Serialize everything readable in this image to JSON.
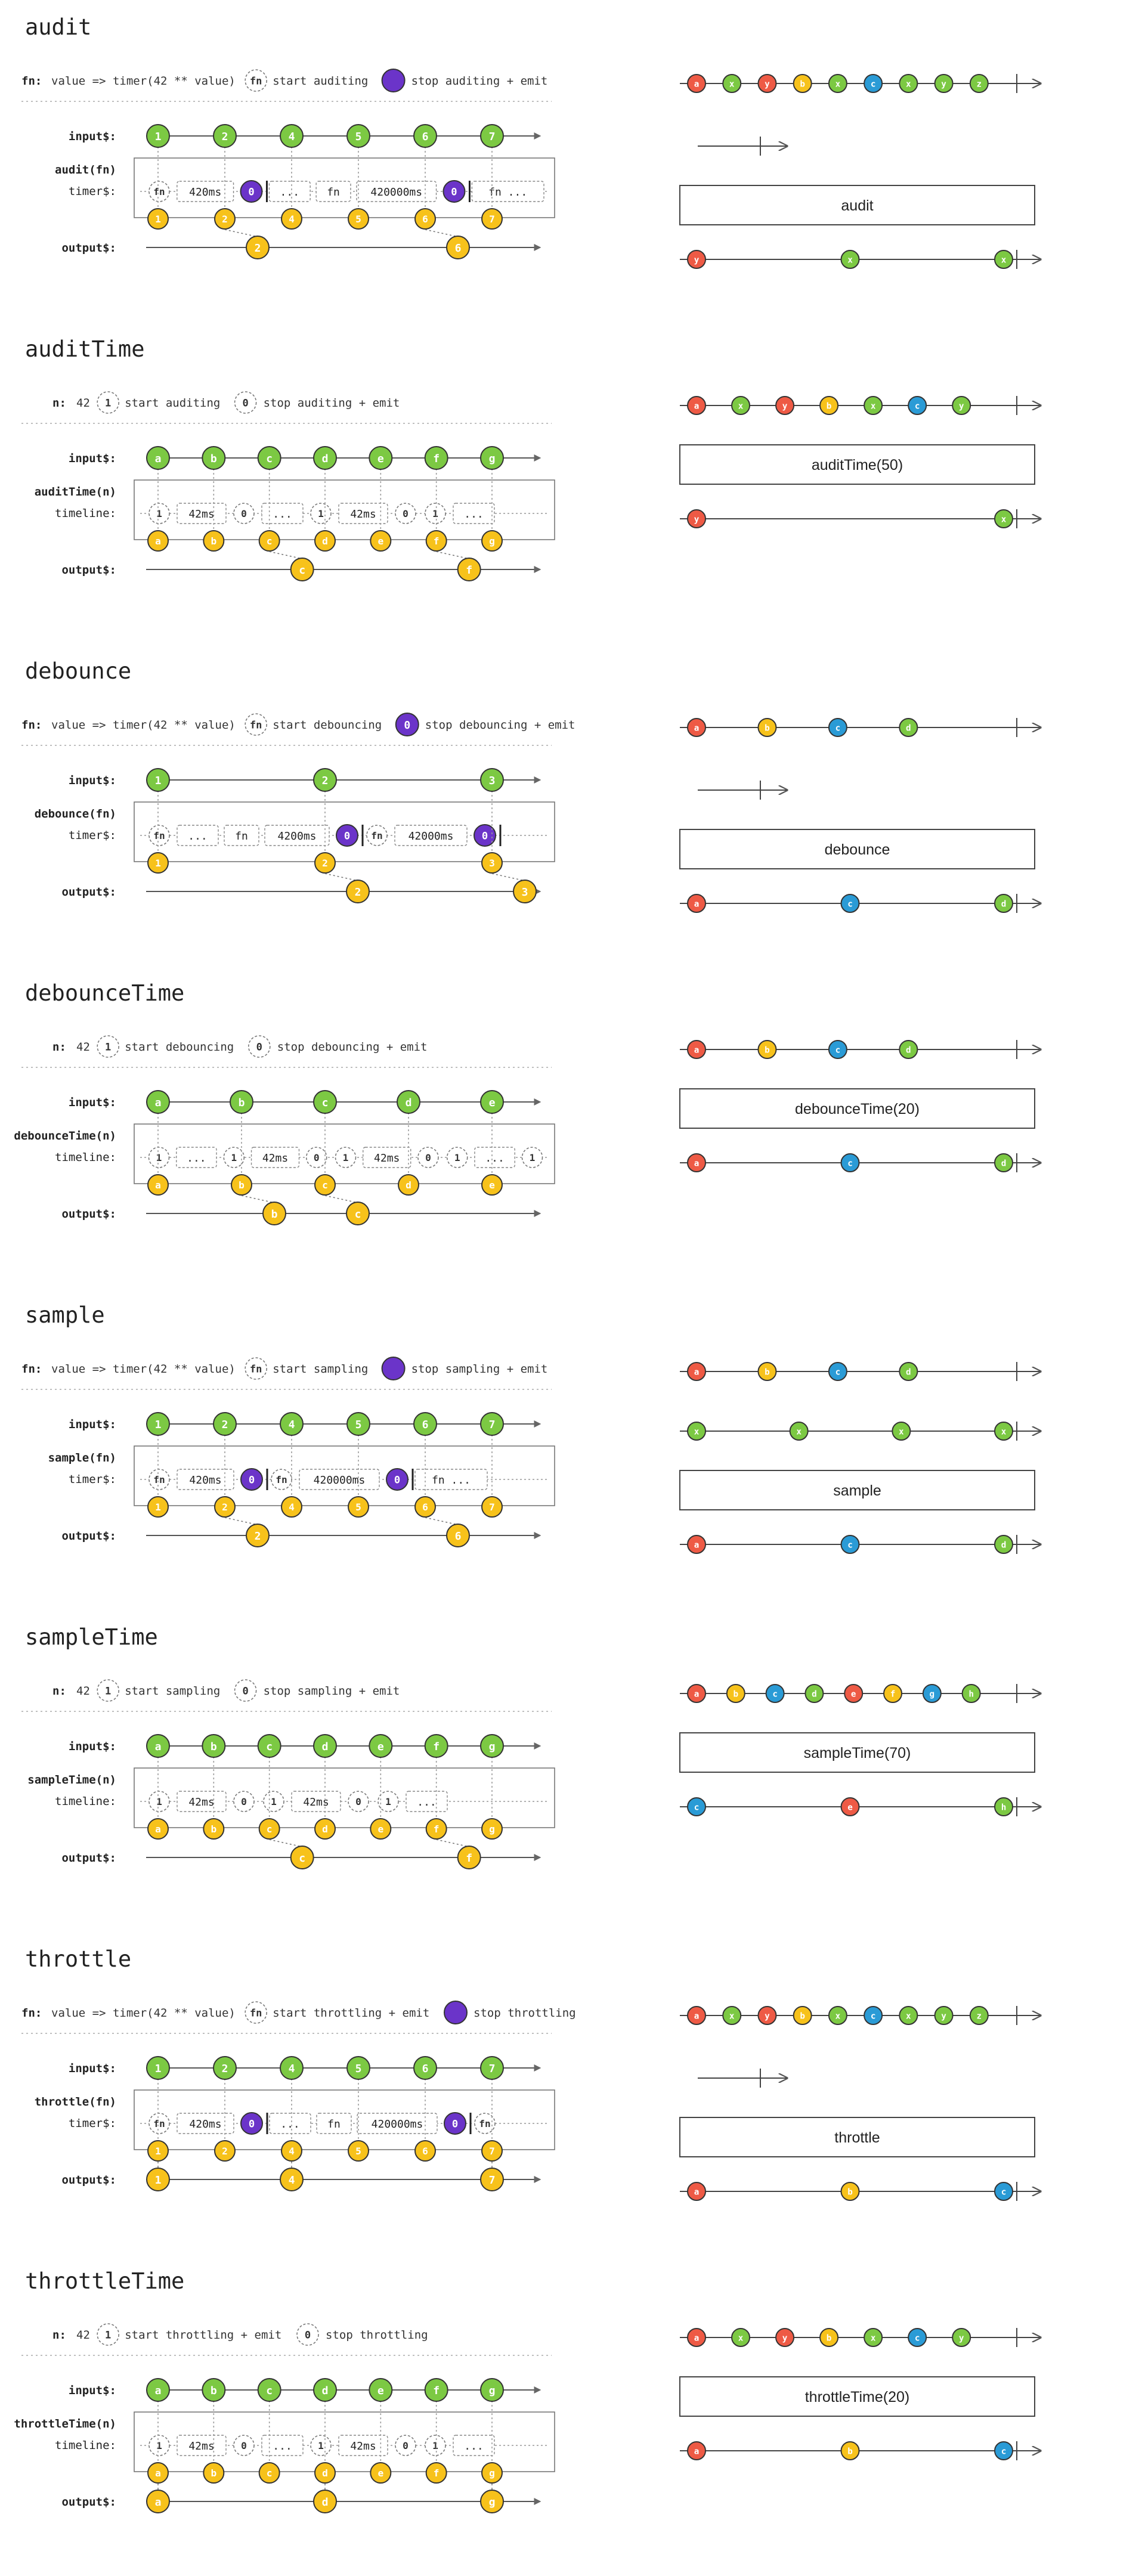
{
  "colors": {
    "green": "#7cc943",
    "yellow": "#f7c21b",
    "purple": "#6b34c9",
    "red": "#ee5a45",
    "blue": "#2a9bd6",
    "lightgreen": "#7fd34e",
    "line": "#555555",
    "dotted": "#9c9c9c"
  },
  "sections": [
    {
      "id": "audit",
      "title": "audit",
      "header": {
        "label": "fn:",
        "expr": "value => timer(42 ** value)",
        "start_glyph": "fn",
        "start_text": "start auditing",
        "stop_glyph": "",
        "stop_filled": true,
        "stop_text": "stop auditing + emit"
      },
      "box_label": "audit(fn)",
      "row_label": "timer$:",
      "input_label": "input$:",
      "output_label": "output$:",
      "inputs": [
        "1",
        "2",
        "4",
        "5",
        "6",
        "7"
      ],
      "outputs": [
        "2",
        "6"
      ],
      "timer_segments": [
        {
          "kind": "circle",
          "text": "fn"
        },
        {
          "kind": "box",
          "text": "420ms"
        },
        {
          "kind": "filled",
          "text": "0"
        },
        {
          "kind": "box",
          "text": "..."
        },
        {
          "kind": "box",
          "text": "fn"
        },
        {
          "kind": "box",
          "text": "420000ms"
        },
        {
          "kind": "filled",
          "text": "0"
        },
        {
          "kind": "box",
          "text": "fn  ..."
        }
      ],
      "marble": {
        "top": [
          {
            "t": "a",
            "c": "red"
          },
          {
            "t": "x",
            "c": "green"
          },
          {
            "t": "y",
            "c": "red"
          },
          {
            "t": "b",
            "c": "yellow"
          },
          {
            "t": "x",
            "c": "green"
          },
          {
            "t": "c",
            "c": "blue"
          },
          {
            "t": "x",
            "c": "green"
          },
          {
            "t": "y",
            "c": "green"
          },
          {
            "t": "z",
            "c": "green"
          }
        ],
        "duration": true,
        "operator": "audit",
        "bottom": [
          {
            "t": "y",
            "c": "red"
          },
          {
            "t": "x",
            "c": "green"
          },
          {
            "t": "x",
            "c": "green"
          }
        ]
      }
    },
    {
      "id": "auditTime",
      "title": "auditTime",
      "header": {
        "label": "n:",
        "expr": "42",
        "start_glyph": "1",
        "start_text": "start auditing",
        "stop_glyph": "0",
        "stop_filled": false,
        "stop_text": "stop auditing + emit"
      },
      "box_label": "auditTime(n)",
      "row_label": "timeline:",
      "input_label": "input$:",
      "output_label": "output$:",
      "inputs": [
        "a",
        "b",
        "c",
        "d",
        "e",
        "f",
        "g"
      ],
      "outputs": [
        "c",
        "f"
      ],
      "timer_segments": [
        {
          "kind": "circle",
          "text": "1"
        },
        {
          "kind": "box",
          "text": "42ms"
        },
        {
          "kind": "circle",
          "text": "0"
        },
        {
          "kind": "box",
          "text": "..."
        },
        {
          "kind": "circle",
          "text": "1"
        },
        {
          "kind": "box",
          "text": "42ms"
        },
        {
          "kind": "circle",
          "text": "0"
        },
        {
          "kind": "circle",
          "text": "1"
        },
        {
          "kind": "box",
          "text": "..."
        }
      ],
      "marble": {
        "top": [
          {
            "t": "a",
            "c": "red"
          },
          {
            "t": "x",
            "c": "green"
          },
          {
            "t": "y",
            "c": "red"
          },
          {
            "t": "b",
            "c": "yellow"
          },
          {
            "t": "x",
            "c": "green"
          },
          {
            "t": "c",
            "c": "blue"
          },
          {
            "t": "y",
            "c": "green"
          }
        ],
        "duration": false,
        "operator": "auditTime(50)",
        "bottom": [
          {
            "t": "y",
            "c": "red"
          },
          {
            "t": "x",
            "c": "green"
          }
        ]
      }
    },
    {
      "id": "debounce",
      "title": "debounce",
      "header": {
        "label": "fn:",
        "expr": "value => timer(42 ** value)",
        "start_glyph": "fn",
        "start_text": "start debouncing",
        "stop_glyph": "0",
        "stop_filled": true,
        "stop_text": "stop debouncing + emit"
      },
      "box_label": "debounce(fn)",
      "row_label": "timer$:",
      "input_label": "input$:",
      "output_label": "output$:",
      "inputs": [
        "1",
        "2",
        "3"
      ],
      "outputs": [
        "2",
        "3"
      ],
      "timer_segments": [
        {
          "kind": "circle",
          "text": "fn"
        },
        {
          "kind": "box",
          "text": "..."
        },
        {
          "kind": "box",
          "text": "fn"
        },
        {
          "kind": "box",
          "text": "4200ms"
        },
        {
          "kind": "filled",
          "text": "0"
        },
        {
          "kind": "circle",
          "text": "fn"
        },
        {
          "kind": "box",
          "text": "42000ms"
        },
        {
          "kind": "filled",
          "text": "0"
        }
      ],
      "marble": {
        "top": [
          {
            "t": "a",
            "c": "red"
          },
          {
            "t": "b",
            "c": "yellow"
          },
          {
            "t": "c",
            "c": "blue"
          },
          {
            "t": "d",
            "c": "green"
          }
        ],
        "duration": true,
        "operator": "debounce",
        "bottom": [
          {
            "t": "a",
            "c": "red"
          },
          {
            "t": "c",
            "c": "blue"
          },
          {
            "t": "d",
            "c": "green"
          }
        ]
      }
    },
    {
      "id": "debounceTime",
      "title": "debounceTime",
      "header": {
        "label": "n:",
        "expr": "42",
        "start_glyph": "1",
        "start_text": "start debouncing",
        "stop_glyph": "0",
        "stop_filled": false,
        "stop_text": "stop debouncing + emit"
      },
      "box_label": "debounceTime(n)",
      "row_label": "timeline:",
      "input_label": "input$:",
      "output_label": "output$:",
      "inputs": [
        "a",
        "b",
        "c",
        "d",
        "e"
      ],
      "outputs": [
        "b",
        "c"
      ],
      "timer_segments": [
        {
          "kind": "circle",
          "text": "1"
        },
        {
          "kind": "box",
          "text": "..."
        },
        {
          "kind": "circle",
          "text": "1"
        },
        {
          "kind": "box",
          "text": "42ms"
        },
        {
          "kind": "circle",
          "text": "0"
        },
        {
          "kind": "circle",
          "text": "1"
        },
        {
          "kind": "box",
          "text": "42ms"
        },
        {
          "kind": "circle",
          "text": "0"
        },
        {
          "kind": "circle",
          "text": "1"
        },
        {
          "kind": "box",
          "text": "..."
        },
        {
          "kind": "circle",
          "text": "1"
        }
      ],
      "marble": {
        "top": [
          {
            "t": "a",
            "c": "red"
          },
          {
            "t": "b",
            "c": "yellow"
          },
          {
            "t": "c",
            "c": "blue"
          },
          {
            "t": "d",
            "c": "green"
          }
        ],
        "duration": false,
        "operator": "debounceTime(20)",
        "bottom": [
          {
            "t": "a",
            "c": "red"
          },
          {
            "t": "c",
            "c": "blue"
          },
          {
            "t": "d",
            "c": "green"
          }
        ]
      }
    },
    {
      "id": "sample",
      "title": "sample",
      "header": {
        "label": "fn:",
        "expr": "value => timer(42 ** value)",
        "start_glyph": "fn",
        "start_text": "start sampling",
        "stop_glyph": "",
        "stop_filled": true,
        "stop_text": "stop sampling + emit"
      },
      "box_label": "sample(fn)",
      "row_label": "timer$:",
      "input_label": "input$:",
      "output_label": "output$:",
      "inputs": [
        "1",
        "2",
        "4",
        "5",
        "6",
        "7"
      ],
      "outputs": [
        "2",
        "6"
      ],
      "timer_segments": [
        {
          "kind": "circle",
          "text": "fn"
        },
        {
          "kind": "box",
          "text": "420ms"
        },
        {
          "kind": "filled",
          "text": "0"
        },
        {
          "kind": "circle",
          "text": "fn"
        },
        {
          "kind": "box",
          "text": "420000ms"
        },
        {
          "kind": "filled",
          "text": "0"
        },
        {
          "kind": "box",
          "text": "fn  ..."
        }
      ],
      "marble": {
        "top": [
          {
            "t": "a",
            "c": "red"
          },
          {
            "t": "b",
            "c": "yellow"
          },
          {
            "t": "c",
            "c": "blue"
          },
          {
            "t": "d",
            "c": "green"
          }
        ],
        "notifier": [
          {
            "t": "x",
            "c": "green"
          },
          {
            "t": "x",
            "c": "green"
          },
          {
            "t": "x",
            "c": "green"
          },
          {
            "t": "x",
            "c": "green"
          }
        ],
        "duration": false,
        "operator": "sample",
        "bottom": [
          {
            "t": "a",
            "c": "red"
          },
          {
            "t": "c",
            "c": "blue"
          },
          {
            "t": "d",
            "c": "green"
          }
        ]
      }
    },
    {
      "id": "sampleTime",
      "title": "sampleTime",
      "header": {
        "label": "n:",
        "expr": "42",
        "start_glyph": "1",
        "start_text": "start sampling",
        "stop_glyph": "0",
        "stop_filled": false,
        "stop_text": "stop sampling + emit"
      },
      "box_label": "sampleTime(n)",
      "row_label": "timeline:",
      "input_label": "input$:",
      "output_label": "output$:",
      "inputs": [
        "a",
        "b",
        "c",
        "d",
        "e",
        "f",
        "g"
      ],
      "outputs": [
        "c",
        "f"
      ],
      "timer_segments": [
        {
          "kind": "circle",
          "text": "1"
        },
        {
          "kind": "box",
          "text": "42ms"
        },
        {
          "kind": "circle",
          "text": "0"
        },
        {
          "kind": "circle",
          "text": "1"
        },
        {
          "kind": "box",
          "text": "42ms"
        },
        {
          "kind": "circle",
          "text": "0"
        },
        {
          "kind": "circle",
          "text": "1"
        },
        {
          "kind": "box",
          "text": "..."
        }
      ],
      "marble": {
        "top": [
          {
            "t": "a",
            "c": "red"
          },
          {
            "t": "b",
            "c": "yellow"
          },
          {
            "t": "c",
            "c": "blue"
          },
          {
            "t": "d",
            "c": "green"
          },
          {
            "t": "e",
            "c": "red"
          },
          {
            "t": "f",
            "c": "yellow"
          },
          {
            "t": "g",
            "c": "blue"
          },
          {
            "t": "h",
            "c": "green"
          }
        ],
        "duration": false,
        "operator": "sampleTime(70)",
        "bottom": [
          {
            "t": "c",
            "c": "blue"
          },
          {
            "t": "e",
            "c": "red"
          },
          {
            "t": "h",
            "c": "green"
          }
        ]
      }
    },
    {
      "id": "throttle",
      "title": "throttle",
      "header": {
        "label": "fn:",
        "expr": "value => timer(42 ** value)",
        "start_glyph": "fn",
        "start_text": "start throttling + emit",
        "stop_glyph": "",
        "stop_filled": true,
        "stop_text": "stop throttling"
      },
      "box_label": "throttle(fn)",
      "row_label": "timer$:",
      "input_label": "input$:",
      "output_label": "output$:",
      "inputs": [
        "1",
        "2",
        "4",
        "5",
        "6",
        "7"
      ],
      "outputs": [
        "1",
        "4",
        "7"
      ],
      "timer_segments": [
        {
          "kind": "circle",
          "text": "fn"
        },
        {
          "kind": "box",
          "text": "420ms"
        },
        {
          "kind": "filled",
          "text": "0"
        },
        {
          "kind": "box",
          "text": "..."
        },
        {
          "kind": "box",
          "text": "fn"
        },
        {
          "kind": "box",
          "text": "420000ms"
        },
        {
          "kind": "filled",
          "text": "0"
        },
        {
          "kind": "circle",
          "text": "fn"
        }
      ],
      "marble": {
        "top": [
          {
            "t": "a",
            "c": "red"
          },
          {
            "t": "x",
            "c": "green"
          },
          {
            "t": "y",
            "c": "red"
          },
          {
            "t": "b",
            "c": "yellow"
          },
          {
            "t": "x",
            "c": "green"
          },
          {
            "t": "c",
            "c": "blue"
          },
          {
            "t": "x",
            "c": "green"
          },
          {
            "t": "y",
            "c": "green"
          },
          {
            "t": "z",
            "c": "green"
          }
        ],
        "duration": true,
        "operator": "throttle",
        "bottom": [
          {
            "t": "a",
            "c": "red"
          },
          {
            "t": "b",
            "c": "yellow"
          },
          {
            "t": "c",
            "c": "blue"
          }
        ]
      }
    },
    {
      "id": "throttleTime",
      "title": "throttleTime",
      "header": {
        "label": "n:",
        "expr": "42",
        "start_glyph": "1",
        "start_text": "start throttling + emit",
        "stop_glyph": "0",
        "stop_filled": false,
        "stop_text": "stop throttling"
      },
      "box_label": "throttleTime(n)",
      "row_label": "timeline:",
      "input_label": "input$:",
      "output_label": "output$:",
      "inputs": [
        "a",
        "b",
        "c",
        "d",
        "e",
        "f",
        "g"
      ],
      "outputs": [
        "a",
        "d",
        "g"
      ],
      "timer_segments": [
        {
          "kind": "circle",
          "text": "1"
        },
        {
          "kind": "box",
          "text": "42ms"
        },
        {
          "kind": "circle",
          "text": "0"
        },
        {
          "kind": "box",
          "text": "..."
        },
        {
          "kind": "circle",
          "text": "1"
        },
        {
          "kind": "box",
          "text": "42ms"
        },
        {
          "kind": "circle",
          "text": "0"
        },
        {
          "kind": "circle",
          "text": "1"
        },
        {
          "kind": "box",
          "text": "..."
        }
      ],
      "marble": {
        "top": [
          {
            "t": "a",
            "c": "red"
          },
          {
            "t": "x",
            "c": "green"
          },
          {
            "t": "y",
            "c": "red"
          },
          {
            "t": "b",
            "c": "yellow"
          },
          {
            "t": "x",
            "c": "green"
          },
          {
            "t": "c",
            "c": "blue"
          },
          {
            "t": "y",
            "c": "green"
          }
        ],
        "duration": false,
        "operator": "throttleTime(20)",
        "bottom": [
          {
            "t": "a",
            "c": "red"
          },
          {
            "t": "b",
            "c": "yellow"
          },
          {
            "t": "c",
            "c": "blue"
          }
        ]
      }
    }
  ]
}
